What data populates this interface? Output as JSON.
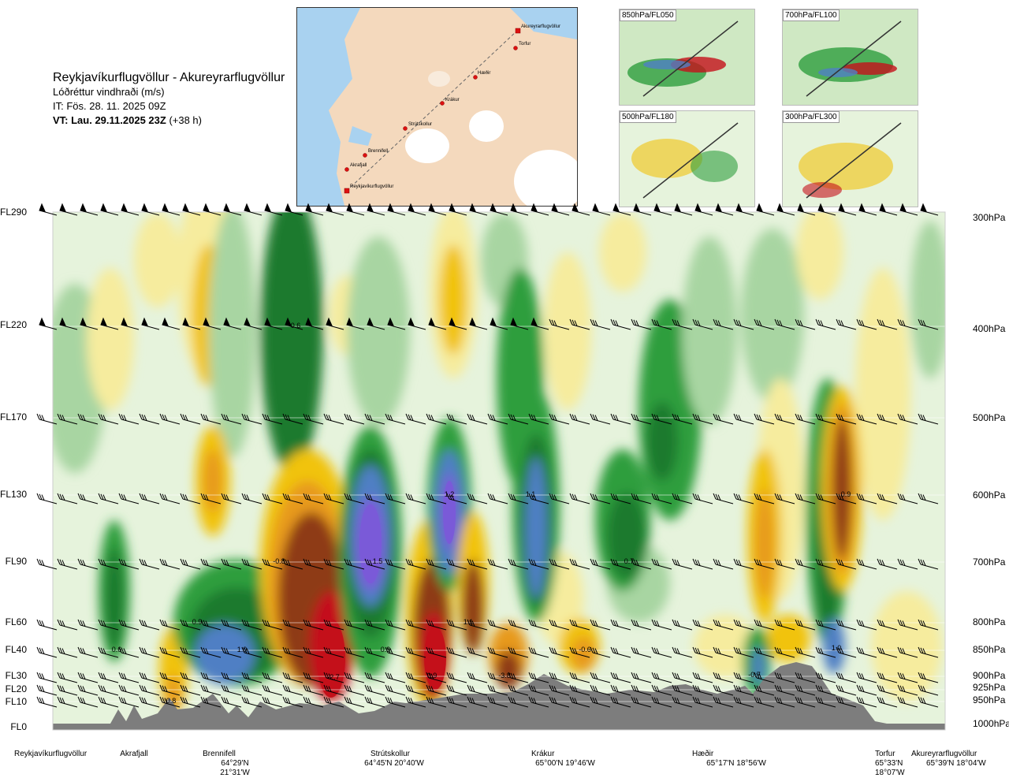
{
  "header": {
    "route": "Reykjavíkurflugvöllur - Akureyrarflugvöllur",
    "variable": "Lóðréttur vindhraði (m/s)",
    "issue_time": "IT: Fös. 28. 11. 2025 09Z",
    "valid_time_bold": "VT: Lau. 29.11.2025 23Z",
    "valid_time_offset": "(+38 h)"
  },
  "route_map": {
    "points": [
      "Reykjavíkurflugvöllur",
      "Akrafjall",
      "Brennifell",
      "Strútskollur",
      "Krákur",
      "Hæðir",
      "Torfur",
      "Akureyrarflugvöllur"
    ]
  },
  "mini_maps": [
    {
      "label": "850hPa/FL050"
    },
    {
      "label": "700hPa/FL100"
    },
    {
      "label": "500hPa/FL180"
    },
    {
      "label": "300hPa/FL300"
    }
  ],
  "chart_data": {
    "type": "heatmap",
    "title": "Reykjavíkurflugvöllur - Akureyrarflugvöllur",
    "variable": "Lóðréttur vindhraði (m/s)",
    "y_left_labels": [
      "FL290",
      "FL220",
      "FL170",
      "FL130",
      "FL90",
      "FL60",
      "FL40",
      "FL30",
      "FL20",
      "FL10",
      "FL0"
    ],
    "y_right_labels": [
      "300hPa",
      "400hPa",
      "500hPa",
      "600hPa",
      "700hPa",
      "800hPa",
      "850hPa",
      "900hPa",
      "925hPa",
      "950hPa",
      "1000hPa"
    ],
    "y_levels_hpa": [
      300,
      400,
      500,
      600,
      700,
      800,
      850,
      900,
      925,
      950,
      1000
    ],
    "x_locations": [
      {
        "name": "Reykjavíkurflugvöllur",
        "coord": ""
      },
      {
        "name": "Akrafjall",
        "coord": ""
      },
      {
        "name": "Brennifell",
        "coord": "64°29'N 21°31'W"
      },
      {
        "name": "Strútskollur",
        "coord": "64°45'N 20°40'W"
      },
      {
        "name": "Krákur",
        "coord": "65°00'N 19°46'W"
      },
      {
        "name": "Hæðir",
        "coord": "65°17'N 18°56'W"
      },
      {
        "name": "Torfur",
        "coord": "65°33'N 18°07'W"
      },
      {
        "name": "Akureyrarflugvöllur",
        "coord": "65°39'N 18°04'W"
      }
    ],
    "extrema_labels": [
      "0.6",
      "1.2",
      "1.1",
      "0.9",
      "-0.8",
      "1.5",
      "0.7",
      "0.9",
      "0.6",
      "1.0",
      "1.1",
      "-0.6",
      "1.0",
      "0.9",
      "-2.7",
      "0.9",
      "-3.8",
      "-0.7",
      "0.8",
      "-0.5"
    ],
    "colors": {
      "strong_up": "#7a5ad8",
      "up_2": "#4f7fc4",
      "up_1": "#1d7a2e",
      "up_0": "#2e9e3e",
      "weak_up": "#a8d5a2",
      "neutral": "#e6f3dc",
      "weak_down": "#f6ec9e",
      "down_1": "#f1c30e",
      "down_2": "#e79a1b",
      "down_3": "#8e3b12",
      "strong_down": "#c4101a",
      "terrain": "#7d7d7d"
    }
  }
}
